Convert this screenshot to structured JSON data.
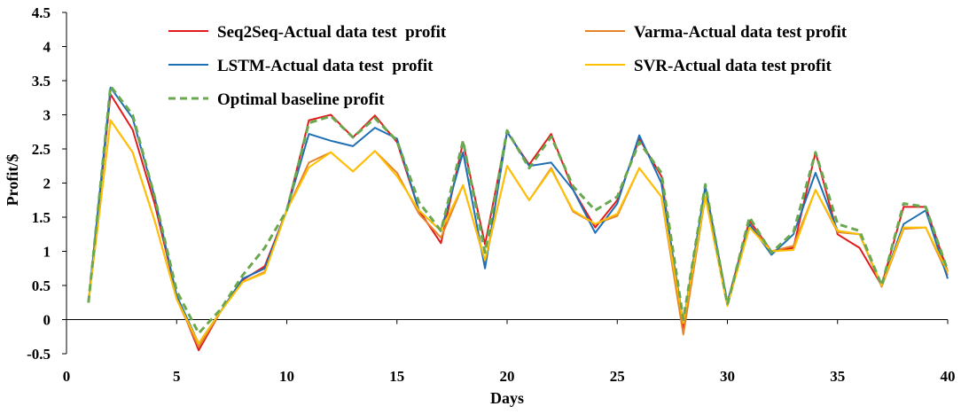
{
  "chart_data": {
    "type": "line",
    "title": "",
    "xlabel": "Days",
    "ylabel": "Profit/$",
    "xlim": [
      0,
      40
    ],
    "ylim": [
      -0.5,
      4.5
    ],
    "xticks": [
      0,
      5,
      10,
      15,
      20,
      25,
      30,
      35,
      40
    ],
    "xtick_labels": [
      "0",
      "5",
      "10",
      "15",
      "20",
      "25",
      "30",
      "35",
      "40"
    ],
    "yticks": [
      -0.5,
      0,
      0.5,
      1,
      1.5,
      2,
      2.5,
      3,
      3.5,
      4,
      4.5
    ],
    "ytick_labels": [
      "-0.5",
      "0",
      "0.5",
      "1",
      "1.5",
      "2",
      "2.5",
      "3",
      "3.5",
      "4",
      "4.5"
    ],
    "grid": false,
    "legend_position": "top",
    "x": [
      1,
      2,
      3,
      4,
      5,
      6,
      7,
      8,
      9,
      10,
      11,
      12,
      13,
      14,
      15,
      16,
      17,
      18,
      19,
      20,
      21,
      22,
      23,
      24,
      25,
      26,
      27,
      28,
      29,
      30,
      31,
      32,
      33,
      34,
      35,
      36,
      37,
      38,
      39,
      40
    ],
    "series": [
      {
        "name": "Seq2Seq-Actual data test  profit",
        "color": "#e31a1c",
        "dash": "solid",
        "values": [
          0.25,
          3.3,
          2.78,
          1.7,
          0.35,
          -0.45,
          0.12,
          0.58,
          0.78,
          1.6,
          2.92,
          3.0,
          2.67,
          2.99,
          2.6,
          1.6,
          1.12,
          2.6,
          1.1,
          2.75,
          2.27,
          2.72,
          1.9,
          1.35,
          1.75,
          2.65,
          2.1,
          -0.15,
          1.95,
          0.25,
          1.45,
          1.0,
          1.05,
          2.45,
          1.25,
          1.05,
          0.5,
          1.65,
          1.65,
          0.7
        ]
      },
      {
        "name": "Varma-Actual data test profit",
        "color": "#e6842a",
        "dash": "solid",
        "values": [
          0.25,
          2.92,
          2.45,
          1.45,
          0.3,
          -0.4,
          0.12,
          0.55,
          0.7,
          1.6,
          2.3,
          2.45,
          2.17,
          2.47,
          2.15,
          1.55,
          1.2,
          1.97,
          0.85,
          2.25,
          1.75,
          2.22,
          1.58,
          1.4,
          1.52,
          2.22,
          1.8,
          -0.22,
          1.8,
          0.2,
          1.4,
          1.0,
          1.08,
          1.9,
          1.28,
          1.25,
          0.48,
          1.33,
          1.35,
          0.65
        ]
      },
      {
        "name": "LSTM-Actual data test  profit",
        "color": "#1f6fb4",
        "dash": "solid",
        "values": [
          0.25,
          3.4,
          2.95,
          1.8,
          0.35,
          -0.35,
          0.12,
          0.6,
          0.75,
          1.6,
          2.72,
          2.62,
          2.54,
          2.81,
          2.65,
          1.6,
          1.3,
          2.45,
          0.75,
          2.75,
          2.25,
          2.3,
          1.9,
          1.27,
          1.7,
          2.7,
          2.0,
          -0.05,
          1.95,
          0.25,
          1.4,
          0.95,
          1.25,
          2.15,
          1.3,
          1.25,
          0.5,
          1.4,
          1.6,
          0.6
        ]
      },
      {
        "name": "SVR-Actual data test profit",
        "color": "#ffc000",
        "dash": "solid",
        "values": [
          0.25,
          2.92,
          2.45,
          1.45,
          0.3,
          -0.35,
          0.12,
          0.55,
          0.68,
          1.6,
          2.23,
          2.45,
          2.17,
          2.47,
          2.1,
          1.6,
          1.3,
          1.97,
          0.87,
          2.25,
          1.75,
          2.2,
          1.6,
          1.4,
          1.55,
          2.22,
          1.8,
          -0.05,
          1.8,
          0.2,
          1.35,
          1.0,
          1.02,
          1.9,
          1.3,
          1.25,
          0.5,
          1.35,
          1.35,
          0.7
        ]
      },
      {
        "name": "Optimal baseline profit",
        "color": "#6aa84f",
        "dash": "dashed",
        "values": [
          0.25,
          3.42,
          3.0,
          1.8,
          0.42,
          -0.2,
          0.15,
          0.65,
          1.05,
          1.6,
          2.88,
          2.98,
          2.67,
          2.95,
          2.62,
          1.72,
          1.3,
          2.62,
          0.98,
          2.77,
          2.22,
          2.68,
          1.95,
          1.6,
          1.8,
          2.6,
          2.15,
          0.0,
          1.98,
          0.22,
          1.5,
          0.98,
          1.28,
          2.45,
          1.4,
          1.3,
          0.5,
          1.7,
          1.65,
          0.72
        ]
      }
    ]
  }
}
